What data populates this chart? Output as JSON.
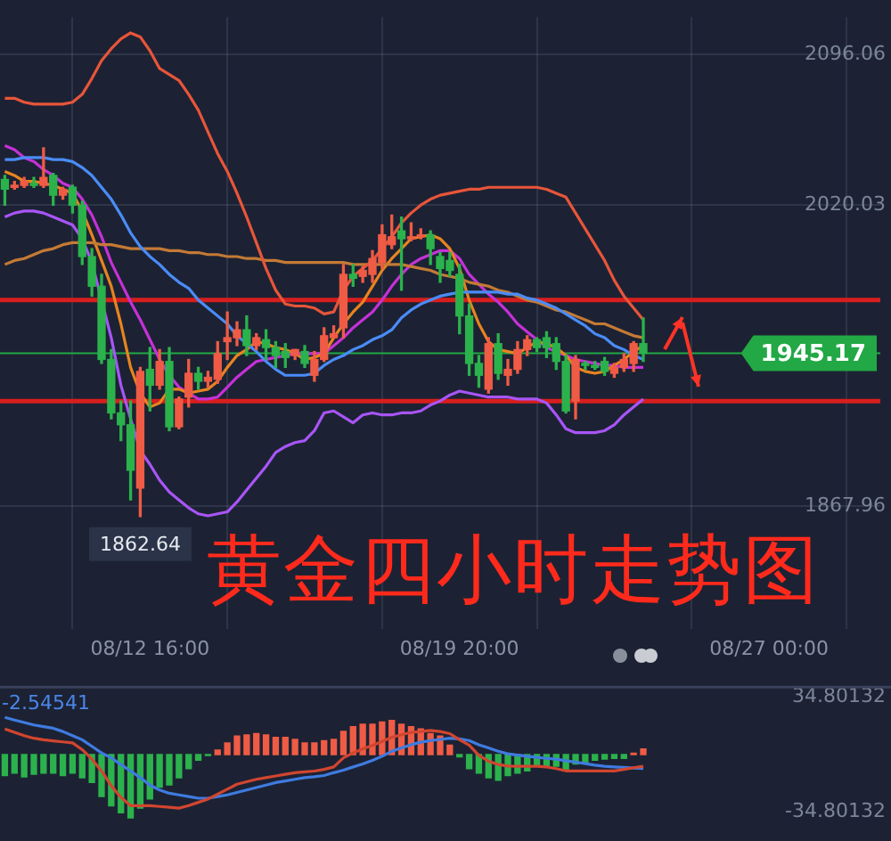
{
  "chart_data": [
    {
      "type": "candlestick",
      "title": "黄金四小时走势图",
      "categories": [
        null,
        null,
        null,
        null,
        null,
        null,
        null,
        null,
        null,
        null,
        null,
        null,
        null,
        null,
        null,
        "08/12 16:00",
        null,
        null,
        null,
        null,
        null,
        null,
        null,
        null,
        null,
        null,
        null,
        null,
        null,
        null,
        null,
        null,
        null,
        null,
        null,
        null,
        null,
        null,
        null,
        null,
        null,
        null,
        null,
        null,
        null,
        null,
        null,
        "08/19 20:00",
        null,
        null,
        null,
        null,
        null,
        null,
        null,
        null,
        null,
        null,
        null,
        null,
        null,
        null,
        null,
        null,
        null,
        null,
        null,
        null,
        null,
        null,
        null,
        null,
        null,
        null,
        null,
        null,
        null,
        null,
        null,
        "08/27 00:00",
        null,
        null,
        null,
        null,
        null,
        null,
        null,
        null,
        null,
        null,
        null
      ],
      "ohlc": [
        [
          2033,
          2035,
          2020,
          2028
        ],
        [
          2029,
          2032,
          2028,
          2030
        ],
        [
          2030,
          2034,
          2029,
          2032
        ],
        [
          2031,
          2034,
          2029,
          2030
        ],
        [
          2030,
          2049,
          2029,
          2034
        ],
        [
          2035,
          2036,
          2020,
          2025
        ],
        [
          2025,
          2029,
          2023,
          2028
        ],
        [
          2029,
          2030,
          2016,
          2020
        ],
        [
          2020,
          2022,
          1990,
          1994
        ],
        [
          1994,
          1998,
          1974,
          1979
        ],
        [
          1979,
          1985,
          1940,
          1942
        ],
        [
          1942,
          1947,
          1912,
          1915
        ],
        [
          1915,
          1921,
          1901,
          1909
        ],
        [
          1909,
          1921,
          1871,
          1886
        ],
        [
          1877,
          1938,
          1862.64,
          1936
        ],
        [
          1937,
          1948,
          1916,
          1929
        ],
        [
          1929,
          1947,
          1927,
          1941
        ],
        [
          1941,
          1948,
          1906,
          1908
        ],
        [
          1908,
          1923,
          1907,
          1922
        ],
        [
          1923,
          1942,
          1918,
          1935
        ],
        [
          1935,
          1938,
          1927,
          1931
        ],
        [
          1931,
          1936,
          1928,
          1933
        ],
        [
          1932,
          1951,
          1930,
          1945
        ],
        [
          1951,
          1966,
          1942,
          1953
        ],
        [
          1953,
          1961,
          1949,
          1957
        ],
        [
          1957,
          1964,
          1944,
          1949
        ],
        [
          1949,
          1955,
          1947,
          1953
        ],
        [
          1952,
          1957,
          1942,
          1948
        ],
        [
          1948,
          1951,
          1938,
          1944
        ],
        [
          1946,
          1950,
          1938,
          1943
        ],
        [
          1944,
          1947,
          1942,
          1947
        ],
        [
          1946,
          1949,
          1938,
          1940
        ],
        [
          1934,
          1946,
          1931,
          1942
        ],
        [
          1942,
          1958,
          1941,
          1954
        ],
        [
          1953,
          1959,
          1953,
          1955
        ],
        [
          1958,
          1990,
          1953,
          1985
        ],
        [
          1985,
          1990,
          1979,
          1983
        ],
        [
          1984,
          1989,
          1981,
          1987
        ],
        [
          1985,
          1997,
          1981,
          1993
        ],
        [
          1991,
          2010,
          1988,
          2005
        ],
        [
          2000,
          2015,
          1998,
          2004
        ],
        [
          2007,
          2014,
          1977,
          2003
        ],
        [
          2003,
          2011,
          2002,
          2004
        ],
        [
          2004,
          2008,
          2003,
          2005
        ],
        [
          2005,
          2007,
          1990,
          1998
        ],
        [
          1994,
          1996,
          1981,
          1988
        ],
        [
          1992,
          1996,
          1984,
          1987
        ],
        [
          1985,
          1990,
          1955,
          1964
        ],
        [
          1964,
          1970,
          1934,
          1940
        ],
        [
          1940,
          1944,
          1928,
          1934
        ],
        [
          1927,
          1953,
          1925,
          1950
        ],
        [
          1950,
          1955,
          1932,
          1935
        ],
        [
          1934,
          1942,
          1929,
          1937
        ],
        [
          1937,
          1951,
          1935,
          1947
        ],
        [
          1947,
          1954,
          1944,
          1952
        ],
        [
          1952,
          1953,
          1946,
          1948
        ],
        [
          1953,
          1956,
          1943,
          1948
        ],
        [
          1950,
          1953,
          1937,
          1941
        ],
        [
          1941,
          1944,
          1915,
          1916
        ],
        [
          1921,
          1944,
          1912,
          1942
        ],
        [
          1940,
          1941,
          1937,
          1939
        ],
        [
          1939,
          1941,
          1937,
          1938
        ],
        [
          1941,
          1943,
          1934,
          1936
        ],
        [
          1935,
          1940,
          1933,
          1938
        ],
        [
          1938,
          1945,
          1936,
          1942
        ],
        [
          1940,
          1951,
          1936,
          1950
        ],
        [
          1950,
          1963,
          1941,
          1945.17
        ],
        null,
        null,
        null,
        null,
        null,
        null,
        null,
        null,
        null,
        null,
        null,
        null,
        null,
        null,
        null,
        null,
        null,
        null,
        null,
        null,
        null,
        null,
        null,
        null
      ],
      "colors": [
        "#2bb24c",
        "#ef5b45",
        "#ef5b45",
        "#2bb24c",
        "#ef5b45",
        "#2bb24c",
        "#ef5b45",
        "#2bb24c",
        "#2bb24c",
        "#2bb24c",
        "#2bb24c",
        "#2bb24c",
        "#2bb24c",
        "#2bb24c",
        "#ef5b45",
        "#2bb24c",
        "#ef5b45",
        "#2bb24c",
        "#ef5b45",
        "#ef5b45",
        "#2bb24c",
        "#ef5b45",
        "#ef5b45",
        "#ef5b45",
        "#ef5b45",
        "#2bb24c",
        "#ef5b45",
        "#2bb24c",
        "#2bb24c",
        "#2bb24c",
        "#ef5b45",
        "#2bb24c",
        "#ef5b45",
        "#ef5b45",
        "#ef5b45",
        "#ef5b45",
        "#2bb24c",
        "#ef5b45",
        "#ef5b45",
        "#ef5b45",
        "#ef5b45",
        "#2bb24c",
        "#ef5b45",
        "#ef5b45",
        "#2bb24c",
        "#2bb24c",
        "#2bb24c",
        "#2bb24c",
        "#2bb24c",
        "#2bb24c",
        "#ef5b45",
        "#2bb24c",
        "#ef5b45",
        "#ef5b45",
        "#ef5b45",
        "#2bb24c",
        "#2bb24c",
        "#2bb24c",
        "#2bb24c",
        "#ef5b45",
        "#2bb24c",
        "#2bb24c",
        "#2bb24c",
        "#ef5b45",
        "#ef5b45",
        "#ef5b45",
        "#2bb24c",
        null,
        null,
        null,
        null,
        null,
        null,
        null,
        null,
        null,
        null,
        null,
        null,
        null,
        null,
        null,
        null,
        null,
        null,
        null,
        null,
        null,
        null,
        null,
        null
      ],
      "series": [
        {
          "type": "line",
          "color": "#e8553a",
          "values": [
            2074,
            2074,
            2072,
            2071,
            2071,
            2071,
            2071,
            2072,
            2076,
            2084,
            2093,
            2099,
            2104,
            2107,
            2105,
            2098,
            2089,
            2086,
            2083,
            2076,
            2068,
            2057,
            2046,
            2037,
            2026,
            2014,
            2001,
            1988,
            1977,
            1970,
            1969,
            1969,
            1968,
            1965,
            1966,
            1977,
            1984,
            1988,
            1992,
            1998,
            2004,
            2011,
            2016,
            2020,
            2023,
            2025,
            2026,
            2027,
            2028,
            2028,
            2029,
            2029,
            2029,
            2029,
            2029,
            2029,
            2028,
            2026,
            2024,
            2016,
            2008,
            2000,
            1992,
            1982,
            1974,
            1968,
            1962,
            null,
            null,
            null,
            null,
            null,
            null,
            null,
            null,
            null,
            null,
            null,
            null,
            null,
            null,
            null,
            null,
            null,
            null,
            null,
            null,
            null,
            null,
            null,
            null
          ]
        },
        {
          "type": "line",
          "color": "#a855f7",
          "values": [
            2014,
            2016,
            2017,
            2017,
            2016,
            2014,
            2012,
            2010,
            2003,
            1991,
            null,
            1953,
            1929,
            1912,
            1896,
            1889,
            1881,
            1875,
            1871,
            1867,
            1864,
            1863,
            1864,
            1865,
            1870,
            1876,
            1882,
            1888,
            1895,
            1898,
            1900,
            1901,
            1906,
            1915,
            1916,
            1913,
            1910,
            1914,
            1915,
            1914,
            1914,
            1915,
            1915,
            1916,
            1919,
            1921,
            1924,
            1926,
            1925,
            1924,
            1923,
            1923,
            1923,
            1922,
            1922,
            1922,
            1920,
            1914,
            1907,
            1905,
            1905,
            1905,
            1906,
            1909,
            1914,
            1918,
            1922,
            null,
            null,
            null,
            null,
            null,
            null,
            null,
            null,
            null,
            null,
            null,
            null,
            null,
            null,
            null,
            null,
            null,
            null,
            null,
            null,
            null,
            null,
            null,
            null
          ]
        },
        {
          "type": "line",
          "color": "#4a8cf7",
          "values": [
            2043,
            2043,
            2044,
            2044,
            2044,
            2043,
            2043,
            2042,
            2039,
            2035,
            2029,
            2023,
            2015,
            2006,
            1999,
            1994,
            1990,
            1985,
            1981,
            1978,
            1972,
            1968,
            1964,
            1960,
            1954,
            1950,
            1946,
            1941,
            1937,
            1934,
            1934,
            1934,
            1935,
            1939,
            1942,
            1944,
            1947,
            1949,
            1952,
            1954,
            1957,
            1963,
            1967,
            1970,
            1972,
            1974,
            1975,
            1976,
            1976,
            1976,
            1976,
            1976,
            1975,
            1975,
            1973,
            1972,
            1970,
            1968,
            1965,
            1962,
            1959,
            1955,
            1953,
            1949,
            1947,
            1944,
            1942,
            null,
            null,
            null,
            null,
            null,
            null,
            null,
            null,
            null,
            null,
            null,
            null,
            null,
            null,
            null,
            null,
            null,
            null,
            null,
            null,
            null,
            null,
            null,
            null
          ]
        },
        {
          "type": "line",
          "color": "#c47a35",
          "values": [
            1990,
            1992,
            1993,
            1995,
            1997,
            1998,
            2000,
            2001,
            2001,
            2001,
            2000,
            2000,
            1999,
            1998,
            1998,
            1998,
            1998,
            1997,
            1997,
            1996,
            1996,
            1995,
            1995,
            1994,
            1994,
            1993,
            1993,
            1992,
            1992,
            1991,
            1991,
            1991,
            1991,
            1991,
            1991,
            1991,
            1990,
            1990,
            1990,
            1990,
            1990,
            1990,
            1989,
            1988,
            1987,
            1985,
            1984,
            1983,
            1981,
            1980,
            1979,
            1977,
            1976,
            1974,
            1972,
            1971,
            1969,
            1967,
            1966,
            1964,
            1962,
            1960,
            1960,
            1958,
            1956,
            1954,
            1953,
            null,
            null,
            null,
            null,
            null,
            null,
            null,
            null,
            null,
            null,
            null,
            null,
            null,
            null,
            null,
            null,
            null,
            null,
            null,
            null,
            null,
            null,
            null,
            null
          ]
        },
        {
          "type": "line",
          "color": "#e8841f",
          "values": [
            2037,
            2035,
            2032,
            2032,
            2031,
            2030,
            2028,
            2026,
            2017,
            2005,
            1992,
            1979,
            1960,
            1938,
            1925,
            1918,
            1920,
            1927,
            1927,
            1925,
            1926,
            1927,
            1931,
            1938,
            1944,
            1947,
            1951,
            1950,
            1948,
            1947,
            1945,
            1942,
            1943,
            1945,
            1953,
            1960,
            1966,
            1971,
            1979,
            1987,
            1993,
            1998,
            2003,
            2004,
            2005,
            2003,
            1998,
            1988,
            1972,
            1960,
            1951,
            1947,
            1946,
            1945,
            1948,
            1951,
            1950,
            1948,
            1944,
            1938,
            1936,
            1935,
            1936,
            1939,
            1942,
            1946,
            1949,
            null,
            null,
            null,
            null,
            null,
            null,
            null,
            null,
            null,
            null,
            null,
            null,
            null,
            null,
            null,
            null,
            null,
            null,
            null,
            null,
            null,
            null,
            null,
            null
          ]
        },
        {
          "type": "line",
          "color": "#c531d8",
          "values": [
            2050,
            2048,
            2044,
            2042,
            2038,
            2035,
            2031,
            2029,
            2023,
            2015,
            2004,
            1991,
            1981,
            1971,
            1962,
            1952,
            1942,
            1934,
            1928,
            1925,
            1922,
            1922,
            1923,
            1928,
            1933,
            1937,
            1941,
            1942,
            1943,
            1944,
            1945,
            1945,
            1945,
            1945,
            1949,
            1953,
            1958,
            1962,
            1966,
            1972,
            1979,
            1985,
            1990,
            1993,
            1995,
            1997,
            1997,
            1993,
            1985,
            1980,
            1975,
            1971,
            1966,
            1960,
            1956,
            1952,
            1948,
            1946,
            1944,
            1942,
            1941,
            1940,
            1939,
            1939,
            1938,
            1938,
            1938,
            null,
            null,
            null,
            null,
            null,
            null,
            null,
            null,
            null,
            null,
            null,
            null,
            null,
            null,
            null,
            null,
            null,
            null,
            null,
            null,
            null,
            null,
            null,
            null
          ]
        }
      ],
      "ylim": [
        1806,
        2115
      ],
      "yticks": [
        2096.06,
        2020.03,
        1867.96
      ],
      "ref_lines": [
        {
          "axis": "y",
          "value": 1972,
          "color": "#d81e1e"
        },
        {
          "axis": "y",
          "value": 1921,
          "color": "#d81e1e"
        },
        {
          "axis": "y",
          "value": 1945.17,
          "label": "1945.17",
          "color": "#22a845"
        }
      ],
      "annotations": [
        {
          "text": "1862.64",
          "y": 1862.64
        }
      ],
      "grid": true,
      "legend": false
    },
    {
      "type": "bar",
      "categories": [
        null,
        null,
        null,
        null,
        null,
        null,
        null,
        null,
        null,
        null,
        null,
        null,
        null,
        null,
        null,
        null,
        null,
        null,
        null,
        null,
        null,
        null,
        null,
        null,
        null,
        null,
        null,
        null,
        null,
        null,
        null,
        null,
        null,
        null,
        null,
        null,
        null,
        null,
        null,
        null,
        null,
        null,
        null,
        null,
        null,
        null,
        null,
        null,
        null,
        null,
        null,
        null,
        null,
        null,
        null,
        null,
        null,
        null,
        null,
        null,
        null,
        null,
        null,
        null,
        null,
        null,
        null,
        null,
        null,
        null,
        null,
        null,
        null,
        null,
        null,
        null,
        null,
        null,
        null,
        null,
        null,
        null,
        null,
        null,
        null,
        null,
        null,
        null,
        null,
        null,
        null
      ],
      "series": [
        {
          "type": "bar",
          "colors": [
            "#2bb24c",
            "#2bb24c",
            "#2bb24c",
            "#2bb24c",
            "#2bb24c",
            "#2bb24c",
            "#2bb24c",
            "#2bb24c",
            "#2bb24c",
            "#2bb24c",
            "#2bb24c",
            "#2bb24c",
            "#2bb24c",
            "#2bb24c",
            "#2bb24c",
            "#2bb24c",
            "#2bb24c",
            "#2bb24c",
            "#2bb24c",
            "#2bb24c",
            "#2bb24c",
            "#2bb24c",
            "#ef5b45",
            "#ef5b45",
            "#ef5b45",
            "#ef5b45",
            "#ef5b45",
            "#ef5b45",
            "#ef5b45",
            "#ef5b45",
            "#ef5b45",
            "#ef5b45",
            "#ef5b45",
            "#ef5b45",
            "#ef5b45",
            "#ef5b45",
            "#ef5b45",
            "#ef5b45",
            "#ef5b45",
            "#ef5b45",
            "#ef5b45",
            "#ef5b45",
            "#ef5b45",
            "#ef5b45",
            "#ef5b45",
            "#ef5b45",
            "#ef5b45",
            "#2bb24c",
            "#2bb24c",
            "#2bb24c",
            "#2bb24c",
            "#2bb24c",
            "#2bb24c",
            "#2bb24c",
            "#2bb24c",
            "#2bb24c",
            "#2bb24c",
            "#2bb24c",
            "#2bb24c",
            "#2bb24c",
            "#2bb24c",
            "#2bb24c",
            "#2bb24c",
            "#2bb24c",
            "#2bb24c",
            "#ef5b45",
            "#ef5b45",
            null,
            null,
            null,
            null,
            null,
            null,
            null,
            null,
            null,
            null,
            null,
            null,
            null,
            null,
            null,
            null,
            null,
            null,
            null,
            null,
            null,
            null,
            null,
            null
          ],
          "values": [
            -12.7,
            -11.3,
            -13.6,
            -11.9,
            -11.3,
            -11.3,
            -12.7,
            -11.3,
            -14.1,
            -17,
            -25.5,
            -31.1,
            -35.4,
            -38.5,
            -32.5,
            -26.9,
            -19.8,
            -18.4,
            -14.1,
            -8.5,
            -3.4,
            -0.6,
            2.8,
            7.1,
            11.3,
            11.9,
            12.7,
            11.9,
            10.5,
            10.5,
            9.3,
            7.1,
            7.1,
            8.5,
            9.3,
            14.1,
            17,
            18.4,
            18.4,
            19.8,
            20.7,
            18.4,
            17,
            15.6,
            12.7,
            11.3,
            5.7,
            -1.4,
            -8.5,
            -11.3,
            -14.1,
            -15.6,
            -12.7,
            -11.3,
            -9.9,
            -7.1,
            -7.1,
            -7.1,
            -9.1,
            -5.7,
            -5.1,
            -3.4,
            -2.8,
            -2.3,
            -2.3,
            0.8,
            3.4,
            null,
            null,
            null,
            null,
            null,
            null,
            null,
            null,
            null,
            null,
            null,
            null,
            null,
            null,
            null,
            null,
            null,
            null,
            null,
            null,
            null,
            null,
            null,
            null
          ]
        },
        {
          "type": "line",
          "color": "#d2452f",
          "values": [
            15.6,
            13.5,
            11.5,
            9.9,
            9,
            8.3,
            7.7,
            7.1,
            3,
            -2.8,
            -10,
            -19,
            -26,
            -31,
            -31,
            -31,
            -31.5,
            -32,
            -32.5,
            -31,
            -29,
            -27,
            -24,
            -21,
            -18,
            -16.5,
            -15,
            -14,
            -13,
            -12,
            -11,
            -10.5,
            -10,
            -9,
            -7.5,
            -2,
            1,
            3.5,
            5.5,
            8,
            10.5,
            12,
            13.5,
            14,
            14.7,
            14,
            12.7,
            9,
            5.7,
            -0.5,
            -4,
            -6,
            -7,
            -7.1,
            -7.1,
            -7.1,
            -7.5,
            -8.5,
            -9.9,
            -9.9,
            -9.9,
            -9.9,
            -9.9,
            -9.9,
            -9,
            -8,
            -7.1,
            null,
            null,
            null,
            null,
            null,
            null,
            null,
            null,
            null,
            null,
            null,
            null,
            null,
            null,
            null,
            null,
            null,
            null,
            null,
            null,
            null,
            null,
            null,
            null
          ]
        },
        {
          "type": "line",
          "color": "#3f7be0",
          "values": [
            22.6,
            21,
            19.5,
            18,
            17,
            16,
            14,
            11.5,
            9,
            5,
            1,
            -2,
            -6,
            -10,
            -14,
            -18.5,
            -21.5,
            -23.5,
            -24.5,
            -25.5,
            -26.5,
            -26.5,
            -25.5,
            -24.5,
            -23,
            -21.5,
            -20,
            -18.5,
            -17,
            -16,
            -15,
            -14,
            -13.5,
            -12.7,
            -11,
            -9.5,
            -7.5,
            -5.7,
            -3.5,
            -1,
            2,
            4,
            6,
            7.5,
            8.5,
            9.2,
            9.9,
            9.5,
            8.5,
            6,
            4,
            2,
            0.5,
            -0.3,
            -1,
            -1.7,
            -2.3,
            -2.8,
            -3.7,
            -4.6,
            -5.5,
            -6.4,
            -7.1,
            -7.5,
            -7.8,
            -8.2,
            -8.5,
            null,
            null,
            null,
            null,
            null,
            null,
            null,
            null,
            null,
            null,
            null,
            null,
            null,
            null,
            null,
            null,
            null,
            null,
            null,
            null,
            null,
            null,
            null,
            null
          ]
        }
      ],
      "ylim": [
        -41,
        41
      ],
      "yticks": [
        {
          "value": -34.80132,
          "label": "-34.80132"
        },
        {
          "value": 34.80132,
          "label": "34.80132"
        }
      ],
      "annotations": [
        "-2.54541"
      ],
      "tick_labels": "y",
      "grid": false,
      "legend": false
    }
  ]
}
